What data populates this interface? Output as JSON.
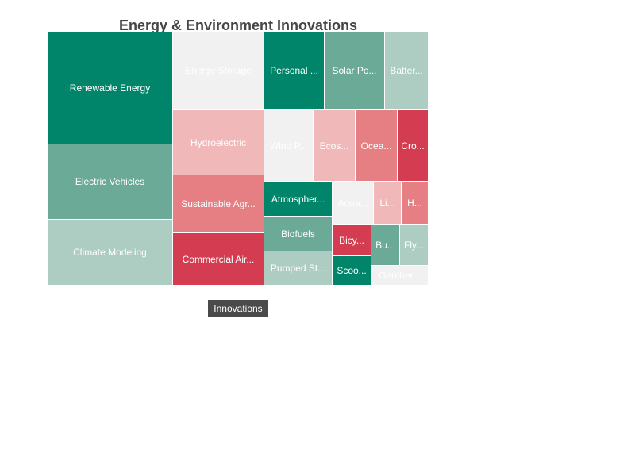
{
  "chart_data": {
    "type": "treemap",
    "title": "Energy & Environment Innovations",
    "root": "Innovations",
    "nodes": [
      {
        "name": "Renewable Energy",
        "value": 18,
        "color": "#00856a"
      },
      {
        "name": "Electric Vehicles",
        "value": 12,
        "color": "#6aaa96"
      },
      {
        "name": "Climate Modeling",
        "value": 10,
        "color": "#aecdc2"
      },
      {
        "name": "Energy Storage",
        "value": 7,
        "color": "#f1f1f1"
      },
      {
        "name": "Hydroelectric",
        "value": 6,
        "color": "#f0b8b8"
      },
      {
        "name": "Sustainable Agr...",
        "value": 5,
        "color": "#e67f83"
      },
      {
        "name": "Commercial Air...",
        "value": 5,
        "color": "#d43d51"
      },
      {
        "name": "Personal ...",
        "value": 4,
        "color": "#00856a"
      },
      {
        "name": "Solar Po...",
        "value": 4,
        "color": "#6aaa96"
      },
      {
        "name": "Batter...",
        "value": 3,
        "color": "#aecdc2"
      },
      {
        "name": "Wind P...",
        "value": 3,
        "color": "#f1f1f1"
      },
      {
        "name": "Ecos...",
        "value": 2,
        "color": "#f0b8b8"
      },
      {
        "name": "Ocea...",
        "value": 2,
        "color": "#e67f83"
      },
      {
        "name": "Cro...",
        "value": 2,
        "color": "#d43d51"
      },
      {
        "name": "Atmospher...",
        "value": 2,
        "color": "#00856a"
      },
      {
        "name": "Biofuels",
        "value": 2,
        "color": "#6aaa96"
      },
      {
        "name": "Pumped St...",
        "value": 2,
        "color": "#aecdc2"
      },
      {
        "name": "Aqua...",
        "value": 1.5,
        "color": "#f1f1f1"
      },
      {
        "name": "Li...",
        "value": 1,
        "color": "#f0b8b8"
      },
      {
        "name": "H...",
        "value": 1,
        "color": "#e67f83"
      },
      {
        "name": "Bicy...",
        "value": 1,
        "color": "#d43d51"
      },
      {
        "name": "Scoo...",
        "value": 1,
        "color": "#00856a"
      },
      {
        "name": "Bu...",
        "value": 1,
        "color": "#6aaa96"
      },
      {
        "name": "Fly...",
        "value": 1,
        "color": "#aecdc2"
      },
      {
        "name": "Geother...",
        "value": 0.5,
        "color": "#f1f1f1"
      }
    ]
  }
}
